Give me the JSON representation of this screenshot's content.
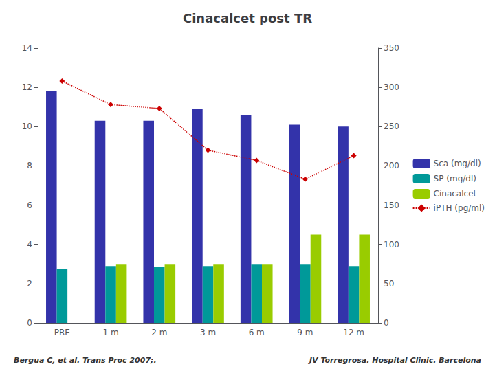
{
  "chart_data": {
    "type": "bar",
    "title": "Cinacalcet post TR",
    "categories": [
      "PRE",
      "1 m",
      "2 m",
      "3 m",
      "6 m",
      "9 m",
      "12 m"
    ],
    "series": [
      {
        "name": "Sca (mg/dl)",
        "color": "#3333AA",
        "values": [
          11.8,
          10.3,
          10.3,
          10.9,
          10.6,
          10.1,
          10.0
        ]
      },
      {
        "name": "SP (mg/dl)",
        "color": "#009999",
        "values": [
          2.75,
          2.9,
          2.85,
          2.9,
          3.0,
          3.0,
          2.9
        ]
      },
      {
        "name": "Cinacalcet",
        "color": "#99CC00",
        "values": [
          0.0,
          3.0,
          3.0,
          3.0,
          3.0,
          4.5,
          4.5
        ]
      },
      {
        "name": "iPTH (pg/ml)",
        "color": "#CC0000",
        "type": "line",
        "axis": "y2",
        "marker": "diamond",
        "line_style": "dotted",
        "values": [
          308,
          278,
          273,
          220,
          207,
          183,
          213
        ]
      }
    ],
    "ylim": [
      0,
      14
    ],
    "yticks": [
      0,
      2,
      4,
      6,
      8,
      10,
      12,
      14
    ],
    "y2lim": [
      0,
      350
    ],
    "y2ticks": [
      0,
      50,
      100,
      150,
      200,
      250,
      300,
      350
    ],
    "grid": false,
    "legend": "right",
    "annotations": [
      "Bergua C, et al. Trans Proc 2007;.",
      "JV Torregrosa. Hospital Clinic. Barcelona"
    ]
  }
}
